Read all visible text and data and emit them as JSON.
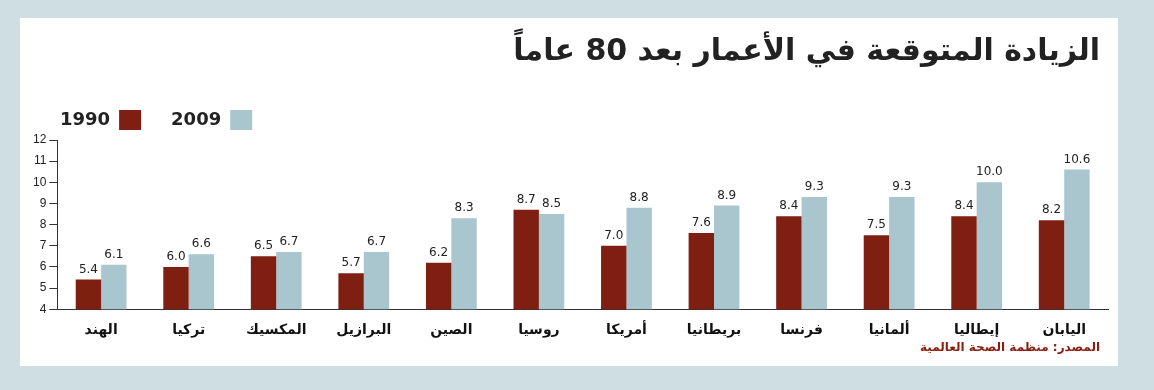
{
  "chart_data": {
    "type": "bar",
    "title": "الزيادة المتوقعة في الأعمار بعد 80 عاماً",
    "categories": [
      "الهند",
      "تركيا",
      "المكسيك",
      "البرازيل",
      "الصين",
      "روسيا",
      "أمريكا",
      "بريطانيا",
      "فرنسا",
      "ألمانيا",
      "إيطاليا",
      "اليابان"
    ],
    "series": [
      {
        "name": "1990",
        "color": "#7f1f12",
        "values": [
          5.4,
          6.0,
          6.5,
          5.7,
          6.2,
          8.7,
          7.0,
          7.6,
          8.4,
          7.5,
          8.4,
          8.2
        ],
        "value_labels": [
          "5.4",
          "6.0",
          "6.5",
          "5.7",
          "6.2",
          "8.7",
          "7.0",
          "7.6",
          "8.4",
          "7.5",
          "8.4",
          "8.2"
        ]
      },
      {
        "name": "2009",
        "color": "#a9c6cf",
        "values": [
          6.1,
          6.6,
          6.7,
          6.7,
          8.3,
          8.5,
          8.8,
          8.9,
          9.3,
          9.3,
          10.0,
          10.6
        ],
        "value_labels": [
          "6.1",
          "6.6",
          "6.7",
          "6.7",
          "8.3",
          "8.5",
          "8.8",
          "8.9",
          "9.3",
          "9.3",
          "10.0",
          "10.6"
        ]
      }
    ],
    "ylim": [
      4,
      12
    ],
    "yticks": [
      4,
      5,
      6,
      7,
      8,
      9,
      10,
      11,
      12
    ],
    "grid": false,
    "legend": "top left",
    "annotations": [
      "المصدر: منظمة الصحة العالمية"
    ]
  }
}
